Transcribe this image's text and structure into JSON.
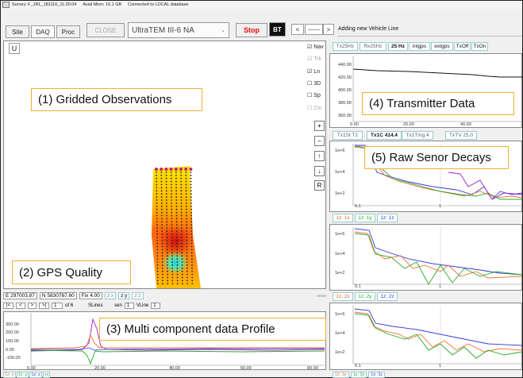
{
  "status": {
    "survey": "Survey: F_1RL_181116_11:20:04",
    "memory": "Avail Mem: 10.1 GB",
    "db": "Connected to LOCAL database"
  },
  "toolbar": {
    "site": "Site",
    "daq": "DAQ",
    "proc": "Proc",
    "close": "CLOSE",
    "device": "UltraTEM III-6 NA",
    "stop": "Stop",
    "bt": "BT",
    "prev": "<",
    "next": ">",
    "message": "Adding new Vehicle Line",
    "u_button": "U"
  },
  "map_panel": {
    "checks": [
      {
        "label": "Nav",
        "checked": true,
        "enabled": true
      },
      {
        "label": "Trk",
        "checked": true,
        "enabled": false
      },
      {
        "label": "Ln",
        "checked": true,
        "enabled": true
      },
      {
        "label": "3D",
        "checked": false,
        "enabled": true
      },
      {
        "label": "Sp",
        "checked": false,
        "enabled": true
      },
      {
        "label": "Zm",
        "checked": false,
        "enabled": false
      }
    ],
    "side_buttons": [
      "+",
      "−",
      "↑",
      "↓",
      "R"
    ]
  },
  "annotations": {
    "a1": "(1) Gridded Observations",
    "a2": "(2) GPS Quality",
    "a3": "(3) Multi component data Profile",
    "a4": "(4) Transmitter Data",
    "a5": "(5) Raw Senor Decays"
  },
  "gps": {
    "easting": "E 297003.87",
    "northing": "N 5830767.60",
    "fix": "Fix 4.00",
    "comp_x": "z:x",
    "comp_y": "z:y",
    "comp_z": "z:z"
  },
  "line_nav": {
    "first": "|<",
    "prev": "<",
    "next": ">",
    "last": ">|",
    "page": "1",
    "of": "of 6",
    "slines": "SLines",
    "sen_label": "sen",
    "sen_val": "1",
    "vline": "VLine",
    "vline_val": "1"
  },
  "tx_tabs": [
    "Tx25Hz",
    "Rx25Hz",
    "25 Hz",
    "intgps",
    "extgps",
    "TxOff",
    "TxOn"
  ],
  "tx_tabs2": [
    "Tx1St T2",
    "Tx1C 414.4",
    "Tx1Tmg 4",
    "TxTV 25.0"
  ],
  "tx_chart": {
    "y_ticks": [
      "440.00",
      "420.00",
      "400.00",
      "380.00",
      "360.00"
    ],
    "x_ticks": [
      "0.00",
      "20.00",
      "40.00"
    ]
  },
  "decay_tabs_mid": [
    "1z: 1x",
    "1z: 1y",
    "1z: 1z"
  ],
  "decay_tabs_bot": [
    "1z: 2x",
    "1z: 2y",
    "1z: 2z"
  ],
  "decay_tabs_last": [
    "1z: 3x",
    "1z: 3y",
    "1z: 3z"
  ],
  "decay": {
    "y_ticks": [
      "1e+6",
      "1e+4",
      "1e+2"
    ],
    "x_ticks": [
      "0.1",
      "1"
    ]
  },
  "profile": {
    "y_ticks": [
      "300.00",
      "200.00",
      "100.00",
      "0.00",
      "-100.00"
    ],
    "x_ticks": [
      "0.00",
      "20.00",
      "40.00",
      "60.00",
      "80.00"
    ],
    "bottom_tabs": [
      "1z: x",
      "1z: y",
      "1z: z",
      "zs"
    ]
  },
  "colors": {
    "orange": "#f0b030",
    "stop_red": "#e01010",
    "blue_line": "#3a3ad8",
    "green_line": "#2aa82a",
    "orange_line": "#f07030",
    "purple_line": "#9a20e0"
  }
}
